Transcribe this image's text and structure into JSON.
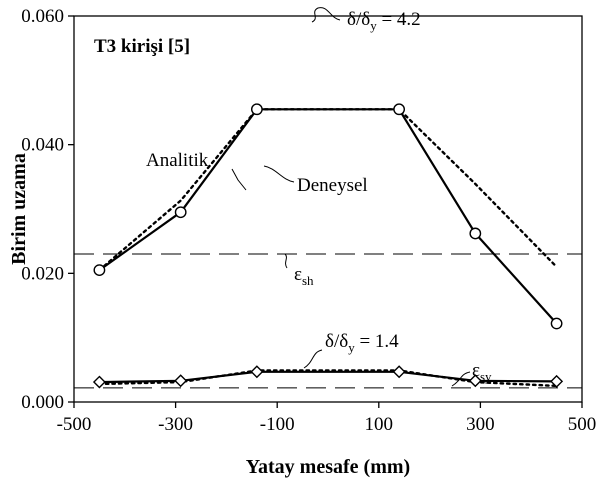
{
  "chart_data": {
    "type": "line",
    "title": "T3 kirişi [5]",
    "xlabel": "Yatay mesafe (mm)",
    "ylabel": "Birim uzama",
    "xlim": [
      -500,
      500
    ],
    "ylim": [
      0,
      0.06
    ],
    "xticks": [
      "-500",
      "-300",
      "-100",
      "100",
      "300",
      "500"
    ],
    "yticks": [
      "0.000",
      "0.020",
      "0.040",
      "0.060"
    ],
    "grid": false,
    "legend": "none",
    "series": [
      {
        "name": "Deneysel",
        "group": "4.2",
        "style": "solid-circle",
        "x": [
          -450,
          -290,
          -140,
          140,
          290,
          450
        ],
        "y": [
          0.0205,
          0.0295,
          0.0455,
          0.0455,
          0.0262,
          0.0122
        ]
      },
      {
        "name": "Analitik",
        "group": "4.2",
        "style": "dotted",
        "x": [
          -450,
          -290,
          -140,
          140,
          290,
          450
        ],
        "y": [
          0.0205,
          0.0313,
          0.0455,
          0.0455,
          0.0339,
          0.021
        ]
      },
      {
        "group": "1.4",
        "style": "solid-diamond",
        "x": [
          -450,
          -290,
          -140,
          140,
          290,
          450
        ],
        "y": [
          0.0031,
          0.0033,
          0.0047,
          0.0047,
          0.0033,
          0.0032
        ]
      },
      {
        "group": "1.4",
        "style": "dotted",
        "x": [
          -450,
          -290,
          -140,
          140,
          290,
          450
        ],
        "y": [
          0.0028,
          0.0031,
          0.0049,
          0.0049,
          0.0031,
          0.0025
        ]
      }
    ],
    "reference_lines": [
      {
        "label": "sh",
        "y": 0.023
      },
      {
        "label": "sy",
        "y": 0.0022
      }
    ],
    "annotations": {
      "analitik": "Analitik",
      "deneysel": "Deneysel",
      "ratio_high": "4.2",
      "ratio_low": "1.4",
      "delta": "δ",
      "sub_y": "y",
      "eps": "ε",
      "eq": " = "
    }
  }
}
